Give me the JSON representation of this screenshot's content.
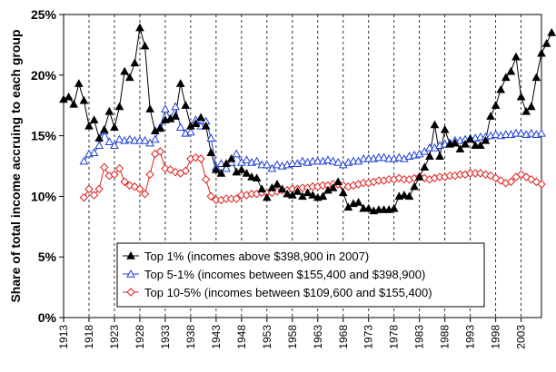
{
  "chart_data": {
    "type": "line",
    "title": "",
    "xlabel": "",
    "ylabel": "Share of total income accruing to each group",
    "xlim": [
      1913,
      2007
    ],
    "ylim": [
      0,
      25
    ],
    "y_ticks": [
      "0%",
      "5%",
      "10%",
      "15%",
      "20%",
      "25%"
    ],
    "x_ticks": [
      "1913",
      "1918",
      "1923",
      "1928",
      "1933",
      "1938",
      "1943",
      "1948",
      "1953",
      "1958",
      "1963",
      "1968",
      "1973",
      "1978",
      "1983",
      "1988",
      "1993",
      "1998",
      "2003"
    ],
    "grid": "vertical dashed lines every 5 years",
    "legend_position": "bottom-center",
    "series": [
      {
        "name": "Top 1% (incomes above $398,900 in 2007)",
        "color": "#000000",
        "marker": "filled-triangle",
        "start_year": 1913,
        "values": [
          18.0,
          18.2,
          17.6,
          19.3,
          17.9,
          15.8,
          16.3,
          14.8,
          15.5,
          17.0,
          15.7,
          17.4,
          20.3,
          19.8,
          21.0,
          23.9,
          22.4,
          17.2,
          15.4,
          15.6,
          16.3,
          16.4,
          16.6,
          19.3,
          17.5,
          15.8,
          16.0,
          16.5,
          15.8,
          13.6,
          12.2,
          11.9,
          12.7,
          13.1,
          12.0,
          12.2,
          11.9,
          11.6,
          11.5,
          10.6,
          9.9,
          10.7,
          11.0,
          10.6,
          10.2,
          10.1,
          10.4,
          10.0,
          10.3,
          10.1,
          9.9,
          10.0,
          10.5,
          10.7,
          11.2,
          10.3,
          9.1,
          9.4,
          9.5,
          9.0,
          9.0,
          8.8,
          8.9,
          8.9,
          8.9,
          9.0,
          10.0,
          10.1,
          10.0,
          10.8,
          11.6,
          12.4,
          13.3,
          15.9,
          13.3,
          15.5,
          14.3,
          14.4,
          13.9,
          14.3,
          14.7,
          14.2,
          14.2,
          14.6,
          16.6,
          17.5,
          18.8,
          19.8,
          20.3,
          21.5,
          18.2,
          17.0,
          17.4,
          19.8,
          21.8,
          22.6,
          23.5
        ]
      },
      {
        "name": "Top 5-1% (incomes between $155,400 and $398,900)",
        "color": "#1f3fd6",
        "marker": "open-triangle",
        "start_year": 1917,
        "values": [
          12.9,
          13.5,
          13.6,
          14.2,
          15.4,
          14.5,
          14.2,
          14.7,
          14.6,
          14.7,
          14.6,
          14.6,
          14.6,
          14.4,
          14.7,
          15.7,
          17.2,
          16.4,
          17.4,
          15.7,
          15.2,
          15.3,
          16.3,
          15.8,
          16.2,
          14.8,
          12.4,
          12.7,
          12.3,
          12.8,
          13.5,
          12.8,
          13.0,
          12.8,
          12.9,
          12.6,
          12.6,
          12.3,
          12.6,
          12.5,
          12.6,
          12.7,
          12.7,
          12.9,
          12.8,
          12.9,
          12.9,
          12.9,
          13.0,
          12.9,
          12.8,
          12.6,
          12.8,
          12.9,
          12.9,
          13.1,
          13.1,
          13.1,
          13.2,
          13.2,
          13.1,
          13.1,
          13.2,
          13.1,
          13.3,
          13.4,
          13.5,
          13.7,
          14.0,
          14.0,
          14.2,
          14.3,
          14.4,
          14.6,
          14.6,
          14.7,
          14.8,
          14.8,
          14.9,
          14.9,
          15.0,
          15.1,
          15.0,
          15.1,
          15.1,
          15.2,
          15.2,
          15.1,
          15.2,
          15.1,
          15.2
        ]
      },
      {
        "name": "Top 10-5% (incomes between $109,600 and $155,400)",
        "color": "#e02020",
        "marker": "open-diamond",
        "start_year": 1917,
        "values": [
          9.9,
          10.6,
          10.1,
          10.6,
          12.4,
          11.7,
          11.8,
          12.3,
          11.2,
          10.9,
          10.8,
          10.6,
          10.2,
          11.8,
          13.5,
          13.7,
          12.3,
          12.2,
          12.0,
          11.9,
          12.1,
          13.1,
          13.2,
          13.1,
          11.4,
          10.0,
          9.7,
          9.7,
          9.8,
          9.8,
          9.8,
          10.1,
          10.1,
          10.2,
          10.2,
          10.3,
          10.3,
          10.3,
          10.4,
          10.5,
          10.5,
          10.6,
          10.6,
          10.7,
          10.7,
          10.8,
          10.8,
          10.9,
          10.9,
          11.0,
          11.0,
          10.9,
          10.8,
          10.9,
          11.0,
          11.1,
          11.1,
          11.2,
          11.3,
          11.3,
          11.4,
          11.4,
          11.5,
          11.4,
          11.4,
          11.5,
          11.6,
          11.5,
          11.4,
          11.5,
          11.6,
          11.6,
          11.7,
          11.7,
          11.8,
          11.8,
          11.9,
          11.9,
          11.9,
          11.8,
          11.7,
          11.5,
          11.3,
          11.1,
          11.2,
          11.6,
          11.8,
          11.6,
          11.4,
          11.2,
          11.0
        ]
      }
    ]
  }
}
